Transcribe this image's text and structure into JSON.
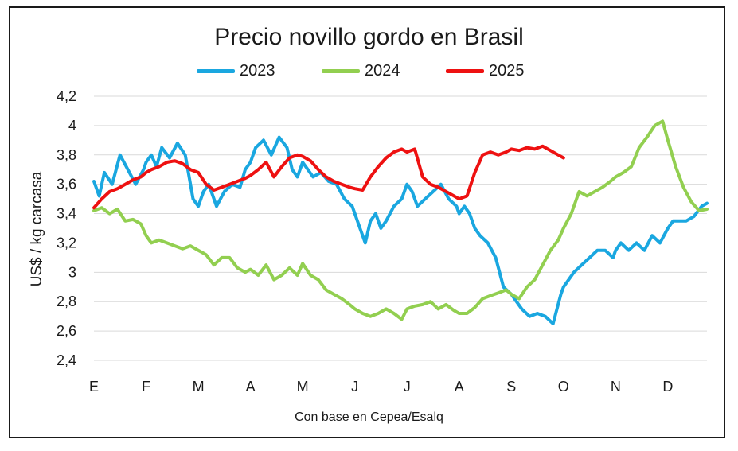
{
  "chart_data": {
    "type": "line",
    "title": "Precio novillo gordo en Brasil",
    "ylabel": "US$ / kg carcasa",
    "xlabel": "",
    "source": "Con base en Cepea/Esalq",
    "ylim": [
      2.4,
      4.2
    ],
    "y_ticks": [
      "4,2",
      "4",
      "3,8",
      "3,6",
      "3,4",
      "3,2",
      "3",
      "2,8",
      "2,6",
      "2,4"
    ],
    "y_tick_values": [
      4.2,
      4.0,
      3.8,
      3.6,
      3.4,
      3.2,
      3.0,
      2.8,
      2.6,
      2.4
    ],
    "x_ticks": [
      "E",
      "F",
      "M",
      "A",
      "M",
      "J",
      "J",
      "A",
      "S",
      "O",
      "N",
      "D"
    ],
    "grid": "horizontal",
    "legend_position": "top",
    "series": [
      {
        "name": "2023",
        "color": "#1aa7e0",
        "x": [
          0.0,
          0.1,
          0.2,
          0.35,
          0.5,
          0.65,
          0.8,
          0.95,
          1.0,
          1.1,
          1.2,
          1.3,
          1.45,
          1.6,
          1.75,
          1.9,
          2.0,
          2.1,
          2.2,
          2.35,
          2.5,
          2.65,
          2.8,
          2.9,
          3.0,
          3.1,
          3.25,
          3.4,
          3.55,
          3.7,
          3.8,
          3.9,
          4.0,
          4.1,
          4.2,
          4.35,
          4.5,
          4.65,
          4.8,
          4.95,
          5.0,
          5.1,
          5.2,
          5.3,
          5.4,
          5.5,
          5.6,
          5.75,
          5.9,
          6.0,
          6.1,
          6.2,
          6.35,
          6.5,
          6.65,
          6.8,
          6.95,
          7.0,
          7.1,
          7.2,
          7.3,
          7.4,
          7.55,
          7.7,
          7.85,
          8.0,
          8.1,
          8.2,
          8.35,
          8.5,
          8.65,
          8.8,
          8.95,
          9.0,
          9.1,
          9.2,
          9.35,
          9.5,
          9.65,
          9.8,
          9.95,
          10.0,
          10.1,
          10.25,
          10.4,
          10.55,
          10.7,
          10.85,
          11.0,
          11.1,
          11.2,
          11.35,
          11.5,
          11.65,
          11.75
        ],
        "values": [
          3.62,
          3.52,
          3.68,
          3.6,
          3.8,
          3.7,
          3.6,
          3.7,
          3.75,
          3.8,
          3.72,
          3.85,
          3.78,
          3.88,
          3.8,
          3.5,
          3.45,
          3.55,
          3.6,
          3.45,
          3.55,
          3.6,
          3.58,
          3.7,
          3.75,
          3.85,
          3.9,
          3.8,
          3.92,
          3.85,
          3.7,
          3.65,
          3.75,
          3.7,
          3.65,
          3.68,
          3.62,
          3.6,
          3.5,
          3.45,
          3.4,
          3.3,
          3.2,
          3.35,
          3.4,
          3.3,
          3.35,
          3.45,
          3.5,
          3.6,
          3.55,
          3.45,
          3.5,
          3.55,
          3.6,
          3.5,
          3.45,
          3.4,
          3.45,
          3.4,
          3.3,
          3.25,
          3.2,
          3.1,
          2.9,
          2.85,
          2.8,
          2.75,
          2.7,
          2.72,
          2.7,
          2.65,
          2.85,
          2.9,
          2.95,
          3.0,
          3.05,
          3.1,
          3.15,
          3.15,
          3.1,
          3.15,
          3.2,
          3.15,
          3.2,
          3.15,
          3.25,
          3.2,
          3.3,
          3.35,
          3.35,
          3.35,
          3.38,
          3.45,
          3.47
        ]
      },
      {
        "name": "2024",
        "color": "#92cf50",
        "x": [
          0.0,
          0.15,
          0.3,
          0.45,
          0.6,
          0.75,
          0.9,
          1.0,
          1.1,
          1.25,
          1.4,
          1.55,
          1.7,
          1.85,
          2.0,
          2.15,
          2.3,
          2.45,
          2.6,
          2.75,
          2.9,
          3.0,
          3.15,
          3.3,
          3.45,
          3.6,
          3.75,
          3.9,
          4.0,
          4.15,
          4.3,
          4.45,
          4.6,
          4.75,
          4.9,
          5.0,
          5.15,
          5.3,
          5.45,
          5.6,
          5.75,
          5.9,
          6.0,
          6.15,
          6.3,
          6.45,
          6.6,
          6.75,
          6.9,
          7.0,
          7.15,
          7.3,
          7.45,
          7.6,
          7.75,
          7.9,
          8.0,
          8.15,
          8.3,
          8.45,
          8.6,
          8.75,
          8.9,
          9.0,
          9.15,
          9.3,
          9.45,
          9.6,
          9.75,
          9.9,
          10.0,
          10.15,
          10.3,
          10.45,
          10.6,
          10.75,
          10.9,
          11.0,
          11.15,
          11.3,
          11.45,
          11.6,
          11.75
        ],
        "values": [
          3.42,
          3.44,
          3.4,
          3.43,
          3.35,
          3.36,
          3.33,
          3.25,
          3.2,
          3.22,
          3.2,
          3.18,
          3.16,
          3.18,
          3.15,
          3.12,
          3.05,
          3.1,
          3.1,
          3.03,
          3.0,
          3.02,
          2.98,
          3.05,
          2.95,
          2.98,
          3.03,
          2.98,
          3.06,
          2.98,
          2.95,
          2.88,
          2.85,
          2.82,
          2.78,
          2.75,
          2.72,
          2.7,
          2.72,
          2.75,
          2.72,
          2.68,
          2.75,
          2.77,
          2.78,
          2.8,
          2.75,
          2.78,
          2.74,
          2.72,
          2.72,
          2.76,
          2.82,
          2.84,
          2.86,
          2.88,
          2.85,
          2.82,
          2.9,
          2.95,
          3.05,
          3.15,
          3.22,
          3.3,
          3.4,
          3.55,
          3.52,
          3.55,
          3.58,
          3.62,
          3.65,
          3.68,
          3.72,
          3.85,
          3.92,
          4.0,
          4.03,
          3.9,
          3.72,
          3.58,
          3.48,
          3.42,
          3.43
        ]
      },
      {
        "name": "2025",
        "color": "#ee1111",
        "x": [
          0.0,
          0.15,
          0.3,
          0.45,
          0.6,
          0.75,
          0.9,
          1.0,
          1.1,
          1.25,
          1.4,
          1.55,
          1.7,
          1.85,
          2.0,
          2.15,
          2.3,
          2.45,
          2.6,
          2.75,
          2.9,
          3.0,
          3.15,
          3.3,
          3.45,
          3.6,
          3.75,
          3.9,
          4.0,
          4.15,
          4.3,
          4.45,
          4.6,
          4.75,
          4.9,
          5.0,
          5.15,
          5.3,
          5.45,
          5.6,
          5.75,
          5.9,
          6.0,
          6.15,
          6.3,
          6.45,
          6.6,
          6.75,
          6.9,
          7.0,
          7.15,
          7.3,
          7.45,
          7.6,
          7.75,
          7.9,
          8.0,
          8.15,
          8.3,
          8.45,
          8.6,
          8.75,
          8.9,
          9.0
        ],
        "values": [
          3.44,
          3.5,
          3.55,
          3.57,
          3.6,
          3.63,
          3.65,
          3.68,
          3.7,
          3.72,
          3.75,
          3.76,
          3.74,
          3.7,
          3.68,
          3.6,
          3.56,
          3.58,
          3.6,
          3.62,
          3.64,
          3.66,
          3.7,
          3.75,
          3.65,
          3.72,
          3.78,
          3.8,
          3.79,
          3.76,
          3.7,
          3.65,
          3.62,
          3.6,
          3.58,
          3.57,
          3.56,
          3.65,
          3.72,
          3.78,
          3.82,
          3.84,
          3.82,
          3.84,
          3.65,
          3.6,
          3.58,
          3.55,
          3.52,
          3.5,
          3.52,
          3.68,
          3.8,
          3.82,
          3.8,
          3.82,
          3.84,
          3.83,
          3.85,
          3.84,
          3.86,
          3.83,
          3.8,
          3.78
        ]
      }
    ]
  }
}
